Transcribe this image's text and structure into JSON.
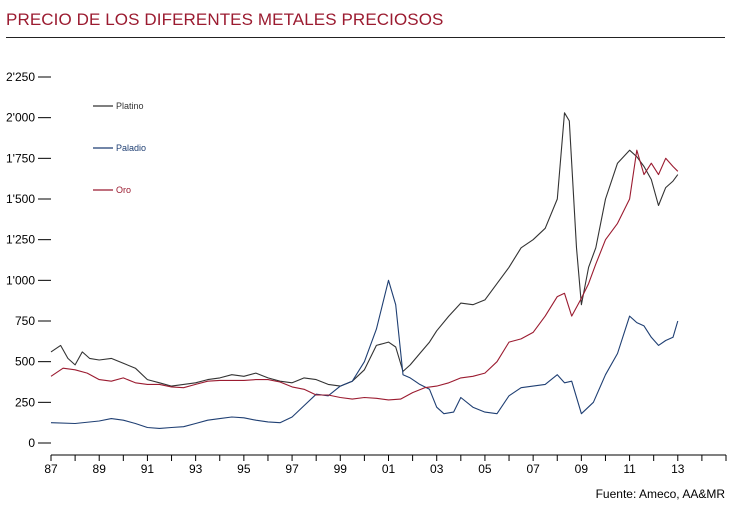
{
  "header": {
    "title": "PRECIO DE LOS DIFERENTES METALES PRECIOSOS"
  },
  "footer": {
    "source": "Fuente: Ameco, AA&MR"
  },
  "chart_data": {
    "type": "line",
    "title": "PRECIO DE LOS DIFERENTES METALES PRECIOSOS",
    "xlabel": "",
    "ylabel": "",
    "xlim": [
      1987,
      2015
    ],
    "ylim": [
      0,
      2250
    ],
    "x_ticks": [
      1987,
      1989,
      1991,
      1993,
      1995,
      1997,
      1999,
      2001,
      2003,
      2005,
      2007,
      2009,
      2011,
      2013
    ],
    "x_tick_labels": [
      "87",
      "89",
      "91",
      "93",
      "95",
      "97",
      "99",
      "01",
      "03",
      "05",
      "07",
      "09",
      "11",
      "13"
    ],
    "y_ticks": [
      0,
      250,
      500,
      750,
      1000,
      1250,
      1500,
      1750,
      2000,
      2250
    ],
    "y_tick_labels": [
      "0",
      "250",
      "500",
      "750",
      "1'000",
      "1'250",
      "1'500",
      "1'750",
      "2'000",
      "2'250"
    ],
    "grid": false,
    "legend_position": "top-left",
    "series": [
      {
        "name": "Platino",
        "color": "#333333",
        "x": [
          1987,
          1987.4,
          1987.7,
          1988,
          1988.3,
          1988.6,
          1989,
          1989.5,
          1990,
          1990.5,
          1991,
          1991.5,
          1992,
          1992.5,
          1993,
          1993.5,
          1994,
          1994.5,
          1995,
          1995.5,
          1996,
          1996.5,
          1997,
          1997.5,
          1998,
          1998.5,
          1999,
          1999.5,
          2000,
          2000.5,
          2001,
          2001.3,
          2001.6,
          2001.9,
          2002.3,
          2002.7,
          2003,
          2003.5,
          2004,
          2004.5,
          2005,
          2005.5,
          2006,
          2006.5,
          2007,
          2007.5,
          2008,
          2008.3,
          2008.5,
          2008.8,
          2009,
          2009.3,
          2009.6,
          2010,
          2010.5,
          2011,
          2011.3,
          2011.6,
          2011.9,
          2012.2,
          2012.5,
          2012.8,
          2013
        ],
        "y": [
          560,
          600,
          520,
          480,
          560,
          520,
          510,
          520,
          490,
          460,
          390,
          370,
          350,
          360,
          370,
          390,
          400,
          420,
          410,
          430,
          400,
          380,
          370,
          400,
          390,
          360,
          350,
          380,
          450,
          600,
          620,
          590,
          440,
          480,
          550,
          620,
          690,
          780,
          860,
          850,
          880,
          980,
          1080,
          1200,
          1250,
          1320,
          1500,
          2030,
          1980,
          1200,
          850,
          1080,
          1200,
          1500,
          1720,
          1800,
          1760,
          1700,
          1620,
          1460,
          1570,
          1610,
          1650
        ]
      },
      {
        "name": "Paladio",
        "color": "#1f3f73",
        "x": [
          1987,
          1988,
          1989,
          1989.5,
          1990,
          1990.5,
          1991,
          1991.5,
          1992,
          1992.5,
          1993,
          1993.5,
          1994,
          1994.5,
          1995,
          1995.5,
          1996,
          1996.5,
          1997,
          1997.5,
          1998,
          1998.5,
          1999,
          1999.5,
          2000,
          2000.5,
          2001,
          2001.3,
          2001.6,
          2001.9,
          2002.3,
          2002.7,
          2003,
          2003.3,
          2003.7,
          2004,
          2004.5,
          2005,
          2005.5,
          2006,
          2006.5,
          2007,
          2007.5,
          2008,
          2008.3,
          2008.6,
          2009,
          2009.5,
          2010,
          2010.5,
          2011,
          2011.3,
          2011.6,
          2011.9,
          2012.2,
          2012.5,
          2012.8,
          2013
        ],
        "y": [
          125,
          120,
          135,
          150,
          140,
          120,
          95,
          90,
          95,
          100,
          120,
          140,
          150,
          160,
          155,
          140,
          130,
          125,
          160,
          230,
          300,
          290,
          350,
          380,
          500,
          700,
          1000,
          850,
          420,
          400,
          360,
          330,
          220,
          180,
          190,
          280,
          220,
          190,
          180,
          290,
          340,
          350,
          360,
          420,
          370,
          380,
          180,
          250,
          420,
          550,
          780,
          740,
          720,
          650,
          600,
          630,
          650,
          750
        ]
      },
      {
        "name": "Oro",
        "color": "#9b1b30",
        "x": [
          1987,
          1987.5,
          1988,
          1988.5,
          1989,
          1989.5,
          1990,
          1990.5,
          1991,
          1991.5,
          1992,
          1992.5,
          1993,
          1993.5,
          1994,
          1994.5,
          1995,
          1995.5,
          1996,
          1996.5,
          1997,
          1997.5,
          1998,
          1998.5,
          1999,
          1999.5,
          2000,
          2000.5,
          2001,
          2001.5,
          2002,
          2002.5,
          2003,
          2003.5,
          2004,
          2004.5,
          2005,
          2005.5,
          2006,
          2006.5,
          2007,
          2007.5,
          2008,
          2008.3,
          2008.6,
          2009,
          2009.3,
          2009.6,
          2010,
          2010.5,
          2011,
          2011.3,
          2011.6,
          2011.9,
          2012.2,
          2012.5,
          2012.8,
          2013
        ],
        "y": [
          410,
          460,
          450,
          430,
          390,
          380,
          400,
          370,
          360,
          360,
          345,
          340,
          360,
          380,
          385,
          385,
          385,
          390,
          390,
          375,
          345,
          330,
          295,
          295,
          280,
          270,
          280,
          275,
          265,
          270,
          310,
          340,
          350,
          370,
          400,
          410,
          430,
          500,
          620,
          640,
          680,
          780,
          900,
          920,
          780,
          890,
          980,
          1100,
          1250,
          1350,
          1500,
          1800,
          1650,
          1720,
          1650,
          1750,
          1700,
          1670
        ]
      }
    ]
  }
}
